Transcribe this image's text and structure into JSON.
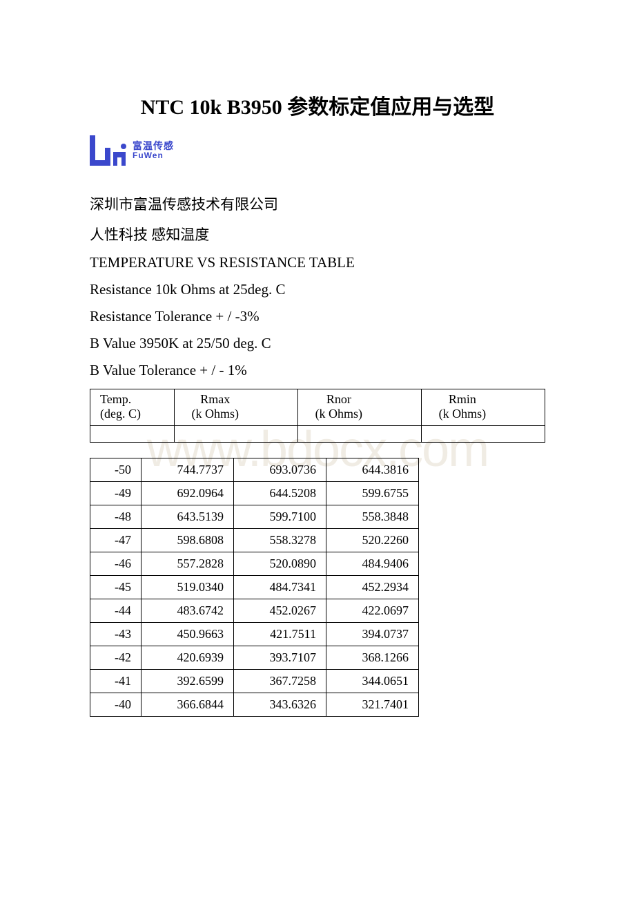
{
  "title": "NTC 10k B3950 参数标定值应用与选型",
  "logo": {
    "cn": "富温传感",
    "en": "FuWen",
    "color": "#3b48cc"
  },
  "watermark": "www.bdocx.com",
  "intro": {
    "company": "深圳市富温传感技术有限公司",
    "slogan": "人性科技 感知温度",
    "table_title": "TEMPERATURE VS RESISTANCE TABLE",
    "resistance": "Resistance 10k Ohms at 25deg. C",
    "r_tol": "Resistance Tolerance + / -3%",
    "b_value": "B Value  3950K at 25/50 deg. C",
    "b_tol": "B Value Tolerance + / - 1%"
  },
  "header_table": {
    "cols": [
      {
        "line1": "Temp.",
        "line2": "(deg. C)"
      },
      {
        "line1": "Rmax",
        "line2": "(k Ohms)"
      },
      {
        "line1": "Rnor",
        "line2": "(k Ohms)"
      },
      {
        "line1": "Rmin",
        "line2": "(k Ohms)"
      }
    ]
  },
  "data_table": {
    "col_widths": [
      "74px",
      "134px",
      "134px",
      "134px"
    ],
    "rows": [
      [
        "-50",
        "744.7737",
        "693.0736",
        "644.3816"
      ],
      [
        "-49",
        "692.0964",
        "644.5208",
        "599.6755"
      ],
      [
        "-48",
        "643.5139",
        "599.7100",
        "558.3848"
      ],
      [
        "-47",
        "598.6808",
        "558.3278",
        "520.2260"
      ],
      [
        "-46",
        "557.2828",
        "520.0890",
        "484.9406"
      ],
      [
        "-45",
        "519.0340",
        "484.7341",
        "452.2934"
      ],
      [
        "-44",
        "483.6742",
        "452.0267",
        "422.0697"
      ],
      [
        "-43",
        "450.9663",
        "421.7511",
        "394.0737"
      ],
      [
        "-42",
        "420.6939",
        "393.7107",
        "368.1266"
      ],
      [
        "-41",
        "392.6599",
        "367.7258",
        "344.0651"
      ],
      [
        "-40",
        "366.6844",
        "343.6326",
        "321.7401"
      ]
    ]
  }
}
